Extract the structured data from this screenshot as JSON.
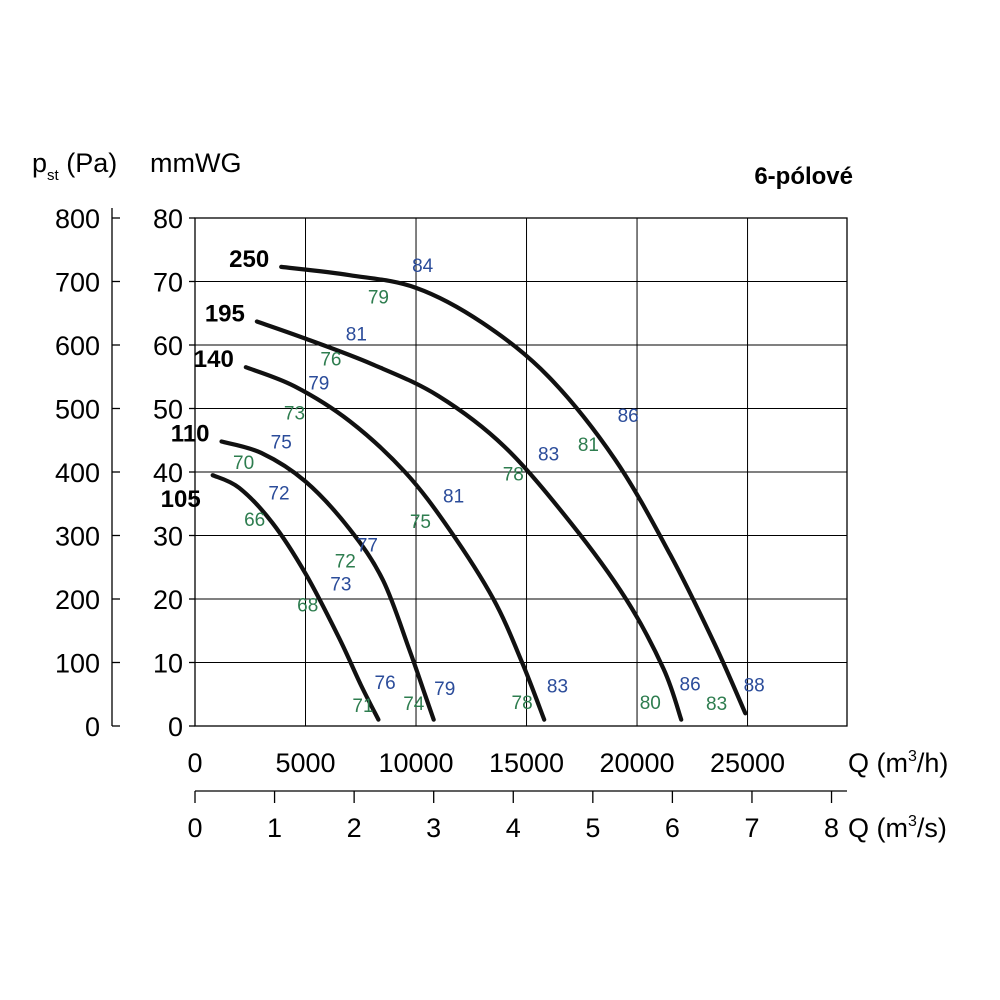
{
  "chart_data": {
    "type": "line",
    "title": "6-pólové",
    "ylabel": {
      "main": "p",
      "sub": "st",
      "unit": " (Pa)"
    },
    "ylabel2": "mmWG",
    "xlabel": {
      "main": "Q (m",
      "sup": "3",
      "end": "/h)"
    },
    "xlabel2": {
      "main": "Q (m",
      "sup": "3",
      "end": "/s)"
    },
    "xlim": [
      0,
      29500
    ],
    "ylim_pa": [
      0,
      800
    ],
    "ylim_mmwg": [
      0,
      80
    ],
    "pa_ticks": [
      "0",
      "100",
      "200",
      "300",
      "400",
      "500",
      "600",
      "700",
      "800"
    ],
    "mmwg_ticks": [
      "0",
      "10",
      "20",
      "30",
      "40",
      "50",
      "60",
      "70",
      "80"
    ],
    "x_ticks": [
      "0",
      "5000",
      "10000",
      "15000",
      "20000",
      "25000"
    ],
    "x2_ticks": [
      "0",
      "1",
      "2",
      "3",
      "4",
      "5",
      "6",
      "7",
      "8"
    ],
    "grid": true,
    "colors": {
      "curve": "#111111",
      "green": "#2e7d4f",
      "blue": "#2b4c9a",
      "grid": "#000000"
    },
    "series": [
      {
        "name": "105",
        "points": [
          [
            800,
            395
          ],
          [
            2000,
            375
          ],
          [
            3500,
            320
          ],
          [
            5000,
            240
          ],
          [
            6500,
            140
          ],
          [
            7500,
            65
          ],
          [
            8300,
            10
          ]
        ]
      },
      {
        "name": "110",
        "points": [
          [
            1200,
            448
          ],
          [
            3000,
            430
          ],
          [
            5000,
            385
          ],
          [
            7000,
            310
          ],
          [
            8500,
            230
          ],
          [
            9700,
            120
          ],
          [
            10400,
            50
          ],
          [
            10800,
            10
          ]
        ]
      },
      {
        "name": "140",
        "points": [
          [
            2300,
            565
          ],
          [
            4500,
            535
          ],
          [
            7000,
            480
          ],
          [
            9500,
            400
          ],
          [
            11500,
            310
          ],
          [
            13500,
            200
          ],
          [
            14800,
            100
          ],
          [
            15800,
            10
          ]
        ]
      },
      {
        "name": "195",
        "points": [
          [
            2800,
            637
          ],
          [
            5000,
            610
          ],
          [
            8000,
            570
          ],
          [
            11000,
            520
          ],
          [
            14000,
            440
          ],
          [
            17000,
            320
          ],
          [
            19500,
            200
          ],
          [
            21200,
            90
          ],
          [
            22000,
            10
          ]
        ]
      },
      {
        "name": "250",
        "points": [
          [
            3900,
            723
          ],
          [
            7000,
            710
          ],
          [
            10000,
            690
          ],
          [
            13000,
            635
          ],
          [
            16000,
            550
          ],
          [
            19000,
            420
          ],
          [
            21500,
            270
          ],
          [
            23500,
            130
          ],
          [
            24900,
            20
          ]
        ]
      }
    ],
    "annotations": [
      {
        "text": "84",
        "color": "blue",
        "x": 10300,
        "y": 715
      },
      {
        "text": "79",
        "color": "green",
        "x": 8300,
        "y": 665
      },
      {
        "text": "81",
        "color": "blue",
        "x": 7300,
        "y": 607
      },
      {
        "text": "76",
        "color": "green",
        "x": 6150,
        "y": 568
      },
      {
        "text": "79",
        "color": "blue",
        "x": 5600,
        "y": 530
      },
      {
        "text": "73",
        "color": "green",
        "x": 4500,
        "y": 483
      },
      {
        "text": "75",
        "color": "blue",
        "x": 3900,
        "y": 437
      },
      {
        "text": "70",
        "color": "green",
        "x": 2200,
        "y": 405
      },
      {
        "text": "72",
        "color": "blue",
        "x": 3800,
        "y": 357
      },
      {
        "text": "66",
        "color": "green",
        "x": 2700,
        "y": 315
      },
      {
        "text": "86",
        "color": "blue",
        "x": 19600,
        "y": 479
      },
      {
        "text": "83",
        "color": "blue",
        "x": 16000,
        "y": 418
      },
      {
        "text": "81",
        "color": "green",
        "x": 17800,
        "y": 433
      },
      {
        "text": "78",
        "color": "green",
        "x": 14400,
        "y": 387
      },
      {
        "text": "81",
        "color": "blue",
        "x": 11700,
        "y": 352
      },
      {
        "text": "75",
        "color": "green",
        "x": 10200,
        "y": 312
      },
      {
        "text": "77",
        "color": "blue",
        "x": 7800,
        "y": 275
      },
      {
        "text": "72",
        "color": "green",
        "x": 6800,
        "y": 250
      },
      {
        "text": "73",
        "color": "blue",
        "x": 6600,
        "y": 213
      },
      {
        "text": "68",
        "color": "green",
        "x": 5100,
        "y": 180
      },
      {
        "text": "76",
        "color": "blue",
        "x": 8600,
        "y": 58
      },
      {
        "text": "71",
        "color": "green",
        "x": 7600,
        "y": 22
      },
      {
        "text": "79",
        "color": "blue",
        "x": 11300,
        "y": 49
      },
      {
        "text": "74",
        "color": "green",
        "x": 9900,
        "y": 25
      },
      {
        "text": "83",
        "color": "blue",
        "x": 16400,
        "y": 53
      },
      {
        "text": "78",
        "color": "green",
        "x": 14800,
        "y": 27
      },
      {
        "text": "86",
        "color": "blue",
        "x": 22400,
        "y": 56
      },
      {
        "text": "80",
        "color": "green",
        "x": 20600,
        "y": 27
      },
      {
        "text": "88",
        "color": "blue",
        "x": 25300,
        "y": 54
      },
      {
        "text": "83",
        "color": "green",
        "x": 23600,
        "y": 25
      }
    ]
  }
}
